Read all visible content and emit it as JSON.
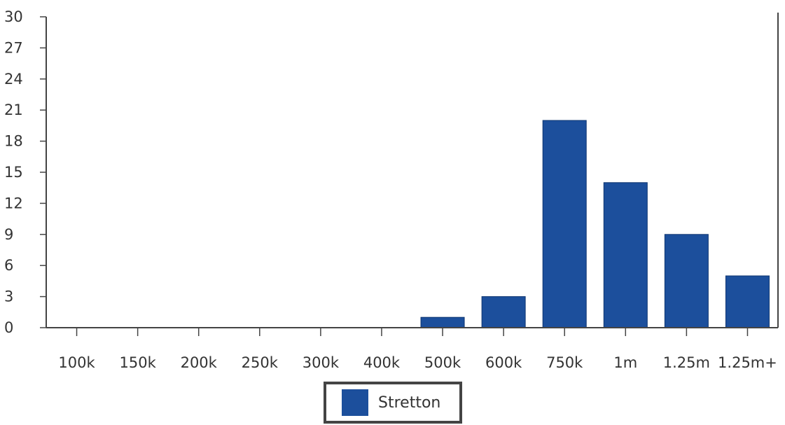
{
  "chart_data": {
    "type": "bar",
    "categories": [
      "100k",
      "150k",
      "200k",
      "250k",
      "300k",
      "400k",
      "500k",
      "600k",
      "750k",
      "1m",
      "1.25m",
      "1.25m+"
    ],
    "series": [
      {
        "name": "Stretton",
        "values": [
          0,
          0,
          0,
          0,
          0,
          0,
          1,
          3,
          20,
          14,
          9,
          5
        ],
        "color": "#1c4f9c"
      }
    ],
    "y_ticks": [
      0,
      3,
      6,
      9,
      12,
      15,
      18,
      21,
      24,
      27,
      30
    ],
    "ylim": [
      0,
      30
    ],
    "title": "",
    "xlabel": "",
    "ylabel": "",
    "grid": false,
    "legend": {
      "placement": "bottom-center",
      "entries": [
        "Stretton"
      ]
    }
  }
}
